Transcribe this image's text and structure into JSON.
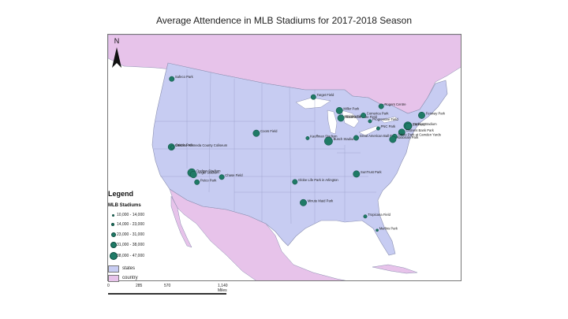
{
  "title": "Average Attendence in MLB Stadiums for 2017-2018 Season",
  "north_label": "N",
  "colors": {
    "ocean": "#ffffff",
    "country": "#e7c3ea",
    "states": "#c7ccf2",
    "stadium": "#1f7a66",
    "border": "#8a8fb0"
  },
  "legend": {
    "title": "Legend",
    "subtitle": "MLB Stadiums",
    "classes": [
      "10,000 - 14,000",
      "14,000 - 23,000",
      "23,000 - 31,000",
      "31,000 - 38,000",
      "38,000 - 47,000"
    ],
    "states_label": "states",
    "country_label": "country"
  },
  "scale_bar": {
    "ticks": [
      "0",
      "285",
      "570",
      "1,140 Miles"
    ]
  },
  "stadiums": [
    {
      "name": "Safeco Park",
      "lon": -122.33,
      "lat": 47.59,
      "cls": 3
    },
    {
      "name": "Oracle Park",
      "lon": -122.39,
      "lat": 37.78,
      "cls": 4
    },
    {
      "name": "Oakland-Alameda County Coliseum",
      "lon": -122.2,
      "lat": 37.75,
      "cls": 2
    },
    {
      "name": "Dodger Stadium",
      "lon": -118.24,
      "lat": 34.07,
      "cls": 5
    },
    {
      "name": "Angel Stadium",
      "lon": -117.88,
      "lat": 33.8,
      "cls": 4
    },
    {
      "name": "Petco Park",
      "lon": -117.16,
      "lat": 32.71,
      "cls": 3
    },
    {
      "name": "Chase Field",
      "lon": -112.07,
      "lat": 33.45,
      "cls": 3
    },
    {
      "name": "Coors Field",
      "lon": -104.99,
      "lat": 39.76,
      "cls": 4
    },
    {
      "name": "Target Field",
      "lon": -93.28,
      "lat": 44.98,
      "cls": 3
    },
    {
      "name": "Kauffman Stadium",
      "lon": -94.48,
      "lat": 39.05,
      "cls": 2
    },
    {
      "name": "Busch Stadium",
      "lon": -90.19,
      "lat": 38.62,
      "cls": 5
    },
    {
      "name": "Miller Park",
      "lon": -87.97,
      "lat": 43.03,
      "cls": 4
    },
    {
      "name": "Guaranteed Rate Field",
      "lon": -87.63,
      "lat": 41.83,
      "cls": 2
    },
    {
      "name": "Wrigley Field",
      "lon": -87.66,
      "lat": 41.95,
      "cls": 4
    },
    {
      "name": "Comerica Park",
      "lon": -83.05,
      "lat": 42.34,
      "cls": 3
    },
    {
      "name": "Progressive Field",
      "lon": -81.69,
      "lat": 41.5,
      "cls": 2
    },
    {
      "name": "Great American Ball Park",
      "lon": -84.51,
      "lat": 39.1,
      "cls": 3
    },
    {
      "name": "PNC Park",
      "lon": -80.01,
      "lat": 40.45,
      "cls": 2
    },
    {
      "name": "Rogers Centre",
      "lon": -79.39,
      "lat": 43.64,
      "cls": 3
    },
    {
      "name": "Fenway Park",
      "lon": -71.1,
      "lat": 42.35,
      "cls": 4
    },
    {
      "name": "Yankee Stadium",
      "lon": -73.93,
      "lat": 40.83,
      "cls": 5
    },
    {
      "name": "Citi Field",
      "lon": -73.85,
      "lat": 40.76,
      "cls": 4
    },
    {
      "name": "Citizens Bank Park",
      "lon": -75.17,
      "lat": 39.91,
      "cls": 4
    },
    {
      "name": "Oriole Park at Camden Yards",
      "lon": -76.62,
      "lat": 39.28,
      "cls": 3
    },
    {
      "name": "Nationals Park",
      "lon": -77.01,
      "lat": 38.87,
      "cls": 4
    },
    {
      "name": "SunTrust Park",
      "lon": -84.47,
      "lat": 33.89,
      "cls": 4
    },
    {
      "name": "Globe Life Park in Arlington",
      "lon": -97.08,
      "lat": 32.75,
      "cls": 3
    },
    {
      "name": "Minute Maid Park",
      "lon": -95.36,
      "lat": 29.76,
      "cls": 4
    },
    {
      "name": "Tropicana Field",
      "lon": -82.65,
      "lat": 27.77,
      "cls": 2
    },
    {
      "name": "Marlins Park",
      "lon": -80.22,
      "lat": 25.78,
      "cls": 1
    }
  ]
}
